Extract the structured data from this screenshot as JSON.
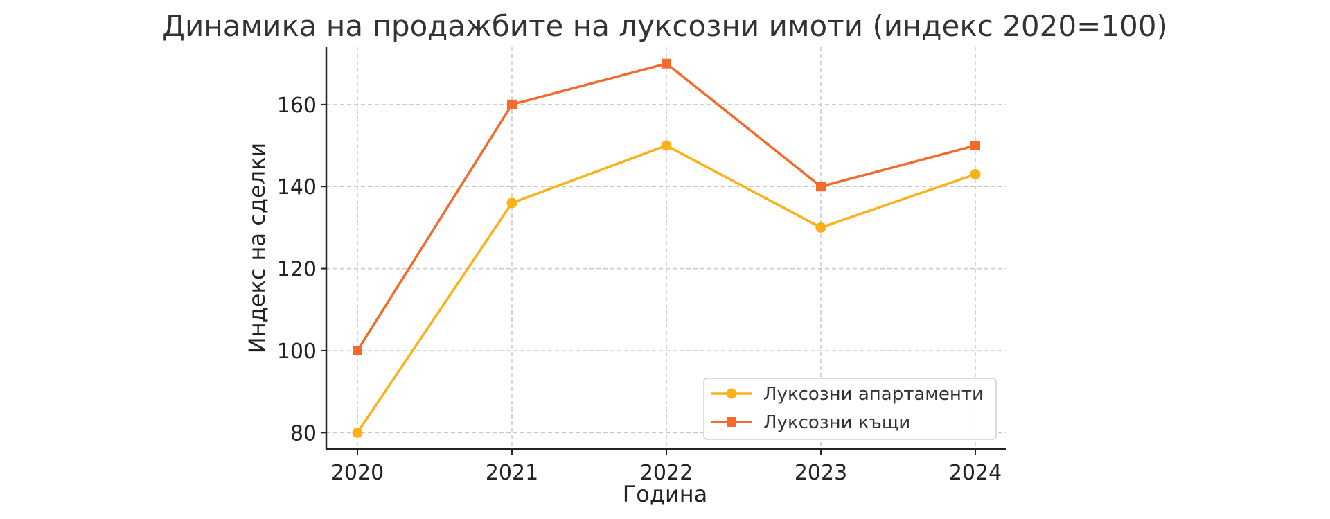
{
  "chart_data": {
    "type": "line",
    "title": "Динамика на продажбите на луксозни имоти (индекс 2020=100)",
    "xlabel": "Година",
    "ylabel": "Индекс на сделки",
    "categories": [
      "2020",
      "2021",
      "2022",
      "2023",
      "2024"
    ],
    "ylim": [
      76,
      174
    ],
    "yticks": [
      80,
      100,
      120,
      140,
      160
    ],
    "grid": true,
    "legend_position": "bottom-right",
    "series": [
      {
        "name": "Луксозни апартаменти",
        "values": [
          80,
          136,
          150,
          130,
          143
        ],
        "color": "#fbb117",
        "marker": "circle"
      },
      {
        "name": "Луксозни къщи",
        "values": [
          100,
          160,
          170,
          140,
          150
        ],
        "color": "#f26b2a",
        "marker": "square"
      }
    ]
  }
}
